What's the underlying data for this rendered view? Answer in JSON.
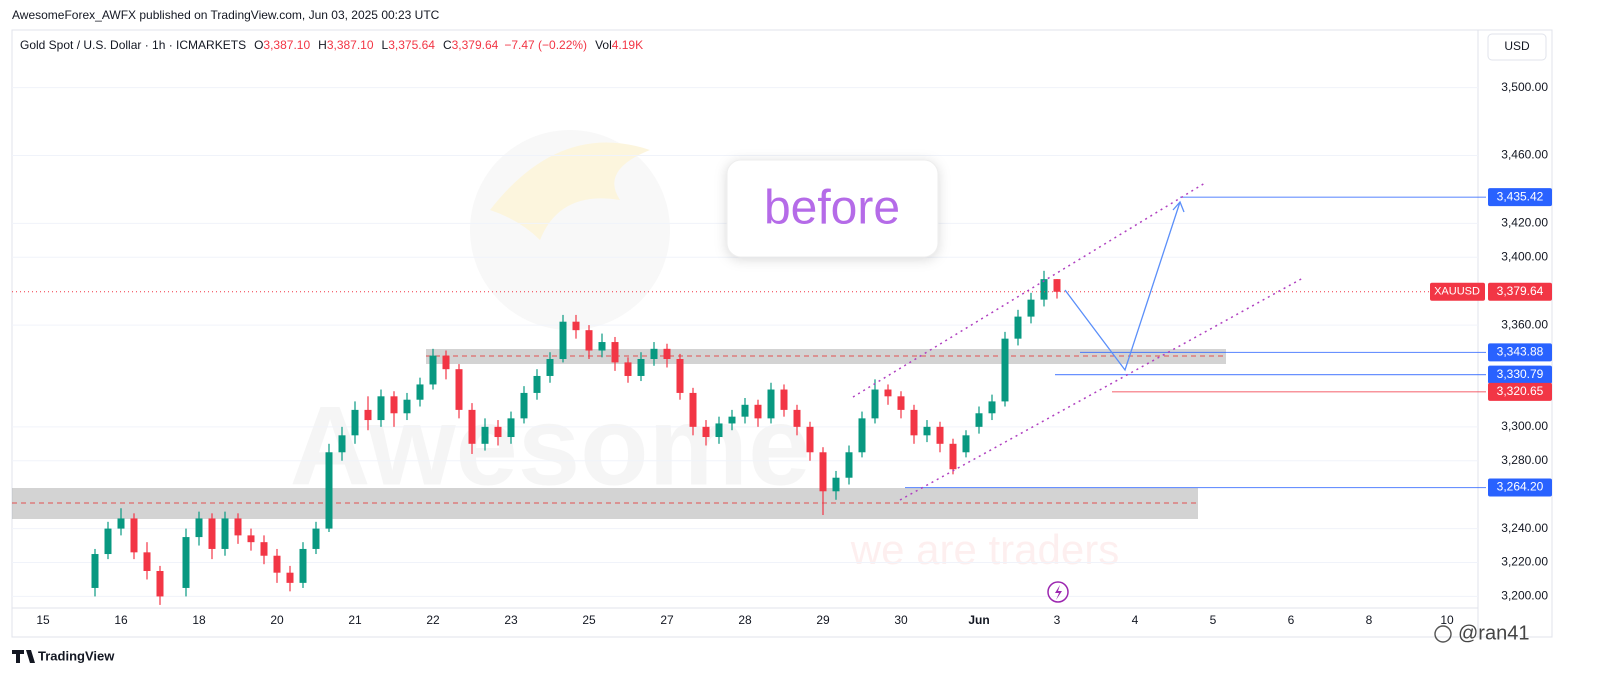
{
  "header": {
    "published": "AwesomeForex_AWFX published on TradingView.com, Jun 03, 2025 00:23 UTC",
    "brand": "TradingView",
    "credit": "@ran41"
  },
  "chart_data": {
    "type": "candlestick",
    "title": "Gold Spot / U.S. Dollar · 1h · ICMARKETS",
    "ohlc_legend": [
      {
        "key": "O",
        "value": "3,387.10"
      },
      {
        "key": "H",
        "value": "3,387.10"
      },
      {
        "key": "L",
        "value": "3,375.64"
      },
      {
        "key": "C",
        "value": "3,379.64"
      }
    ],
    "change": "−7.47 (−0.22%)",
    "volume_key": "Vol",
    "volume": "4.19K",
    "currency": "USD",
    "annotations": {
      "note": "before",
      "watermark": "Awesome",
      "slogan": "we are traders"
    },
    "up_color": "#089981",
    "down_color": "#f23645",
    "grid": true,
    "categories": [
      "15",
      null,
      null,
      null,
      null,
      null,
      "16",
      null,
      null,
      null,
      null,
      null,
      "18",
      null,
      null,
      null,
      null,
      null,
      "20",
      null,
      null,
      null,
      null,
      null,
      "21",
      null,
      null,
      null,
      null,
      null,
      "22",
      null,
      null,
      null,
      null,
      null,
      "23",
      null,
      null,
      null,
      null,
      null,
      "25",
      null,
      null,
      null,
      null,
      null,
      "27",
      null,
      null,
      null,
      null,
      null,
      "28",
      null,
      null,
      null,
      null,
      null,
      "29",
      null,
      null,
      null,
      null,
      null,
      "30",
      null,
      null,
      null,
      null,
      null,
      "Jun",
      null,
      null,
      null,
      null,
      null,
      "3",
      null,
      null,
      null,
      null,
      null,
      "4",
      null,
      null,
      null,
      null,
      null,
      "5",
      null,
      null,
      null,
      null,
      null,
      "6",
      null,
      null,
      null,
      null,
      null,
      "8",
      null,
      null,
      null,
      null,
      null,
      "10",
      null
    ],
    "open": [
      null,
      null,
      null,
      null,
      3205,
      3225,
      3240,
      3246,
      3226,
      3215,
      null,
      3205,
      3235,
      3246,
      3228,
      3246,
      3236,
      3232,
      3224,
      3214,
      3208,
      3228,
      3240,
      3285,
      3295,
      3310,
      3304,
      3318,
      3308,
      3316,
      3325,
      3342,
      3334,
      3310,
      3290,
      3300,
      3294,
      3305,
      3320,
      3330,
      3340,
      3362,
      3357,
      3345,
      3350,
      3338,
      3330,
      3340,
      3346,
      3340,
      3320,
      3300,
      3294,
      3302,
      3306,
      3313,
      3305,
      3322,
      3310,
      3300,
      3285,
      3262,
      3270,
      3285,
      3305,
      3322,
      3318,
      3310,
      3295,
      3300,
      3290,
      3285,
      3300,
      3308,
      3315,
      3352,
      3365,
      3375,
      3387.1,
      null,
      null,
      null,
      null,
      null,
      null,
      null,
      null,
      null,
      null,
      null,
      null,
      null,
      null,
      null,
      null,
      null,
      null,
      null,
      null,
      null,
      null,
      null,
      null,
      null,
      null,
      null,
      null,
      null,
      null,
      null
    ],
    "high": [
      null,
      null,
      null,
      null,
      3228,
      3244,
      3252,
      3249,
      3232,
      3218,
      null,
      3240,
      3250,
      3249,
      3250,
      3249,
      3240,
      3236,
      3228,
      3218,
      3232,
      3244,
      3290,
      3300,
      3315,
      3318,
      3322,
      3321,
      3320,
      3329,
      3346,
      3345,
      3337,
      3314,
      3305,
      3304,
      3309,
      3324,
      3334,
      3344,
      3366,
      3366,
      3360,
      3355,
      3353,
      3341,
      3344,
      3350,
      3349,
      3343,
      3323,
      3304,
      3306,
      3310,
      3317,
      3316,
      3326,
      3325,
      3313,
      3303,
      3288,
      3274,
      3289,
      3309,
      3328,
      3325,
      3321,
      3313,
      3304,
      3303,
      3293,
      3298,
      3312,
      3319,
      3356,
      3369,
      3379,
      3392,
      3387.1,
      null,
      null,
      null,
      null,
      null,
      null,
      null,
      null,
      null,
      null,
      null,
      null,
      null,
      null,
      null,
      null,
      null,
      null,
      null,
      null,
      null,
      null,
      null,
      null,
      null,
      null,
      null,
      null,
      null,
      null,
      null
    ],
    "low": [
      null,
      null,
      null,
      null,
      3200,
      3222,
      3236,
      3222,
      3210,
      3195,
      null,
      3200,
      3230,
      3222,
      3224,
      3231,
      3227,
      3219,
      3208,
      3203,
      3205,
      3225,
      3238,
      3280,
      3290,
      3298,
      3300,
      3300,
      3304,
      3312,
      3322,
      3328,
      3305,
      3284,
      3286,
      3289,
      3290,
      3302,
      3316,
      3326,
      3338,
      3352,
      3340,
      3341,
      3333,
      3326,
      3327,
      3336,
      3335,
      3316,
      3295,
      3289,
      3290,
      3298,
      3302,
      3300,
      3302,
      3306,
      3295,
      3280,
      3248,
      3257,
      3266,
      3282,
      3302,
      3313,
      3305,
      3290,
      3291,
      3285,
      3272,
      3282,
      3296,
      3304,
      3312,
      3348,
      3361,
      3371,
      3375.64,
      null,
      null,
      null,
      null,
      null,
      null,
      null,
      null,
      null,
      null,
      null,
      null,
      null,
      null,
      null,
      null,
      null,
      null,
      null,
      null,
      null,
      null,
      null,
      null,
      null,
      null,
      null,
      null,
      null,
      null,
      null
    ],
    "close": [
      null,
      null,
      null,
      null,
      3225,
      3240,
      3246,
      3226,
      3215,
      3200,
      null,
      3235,
      3246,
      3228,
      3246,
      3236,
      3232,
      3224,
      3214,
      3208,
      3228,
      3240,
      3285,
      3295,
      3310,
      3304,
      3318,
      3308,
      3316,
      3325,
      3342,
      3334,
      3310,
      3290,
      3300,
      3294,
      3305,
      3320,
      3330,
      3340,
      3362,
      3357,
      3345,
      3350,
      3338,
      3330,
      3340,
      3346,
      3340,
      3320,
      3300,
      3294,
      3302,
      3306,
      3313,
      3305,
      3322,
      3310,
      3300,
      3285,
      3262,
      3270,
      3285,
      3305,
      3322,
      3318,
      3310,
      3295,
      3300,
      3290,
      3275,
      3295,
      3308,
      3315,
      3352,
      3365,
      3375,
      3387.1,
      3379.64,
      null,
      null,
      null,
      null,
      null,
      null,
      null,
      null,
      null,
      null,
      null,
      null,
      null,
      null,
      null,
      null,
      null,
      null,
      null,
      null,
      null,
      null,
      null,
      null,
      null,
      null,
      null,
      null,
      null,
      null,
      null
    ],
    "ylim": [
      3192,
      3534
    ],
    "yticks": [
      {
        "value": 3200,
        "label": "3,200.00"
      },
      {
        "value": 3220,
        "label": "3,220.00"
      },
      {
        "value": 3240,
        "label": "3,240.00"
      },
      {
        "value": 3280,
        "label": "3,280.00"
      },
      {
        "value": 3300,
        "label": "3,300.00"
      },
      {
        "value": 3360,
        "label": "3,360.00"
      },
      {
        "value": 3400,
        "label": "3,400.00"
      },
      {
        "value": 3420,
        "label": "3,420.00"
      },
      {
        "value": 3460,
        "label": "3,460.00"
      },
      {
        "value": 3500,
        "label": "3,500.00"
      }
    ],
    "price_lines": [
      {
        "value": 3435.42,
        "label": "3,435.42",
        "color": "#2962ff"
      },
      {
        "value": 3343.88,
        "label": "3,343.88",
        "color": "#2962ff"
      },
      {
        "value": 3330.79,
        "label": "3,330.79",
        "color": "#2962ff"
      },
      {
        "value": 3320.65,
        "label": "3,320.65",
        "color": "#f23645"
      },
      {
        "value": 3264.2,
        "label": "3,264.20",
        "color": "#2962ff"
      }
    ],
    "last_price": {
      "name": "XAUUSD",
      "value": 3379.64,
      "label": "3,379.64",
      "color": "#f23645"
    }
  }
}
